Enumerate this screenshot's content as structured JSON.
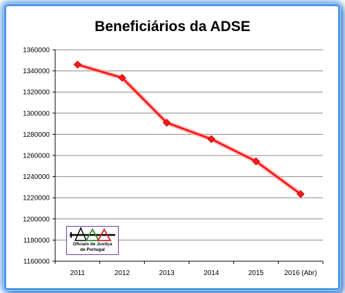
{
  "chart_data": {
    "type": "line",
    "title": "Beneficiários da ADSE",
    "categories": [
      "2011",
      "2012",
      "2013",
      "2014",
      "2015",
      "2016 (Abr)"
    ],
    "series": [
      {
        "values": [
          1346000,
          1333500,
          1291000,
          1275500,
          1254500,
          1223500
        ],
        "color": "#ff1a1a"
      }
    ],
    "ylim": [
      1160000,
      1360000
    ],
    "yticks": [
      1160000,
      1180000,
      1200000,
      1220000,
      1240000,
      1260000,
      1280000,
      1300000,
      1320000,
      1340000,
      1360000
    ],
    "grid": true,
    "marker": "diamond"
  },
  "logo": {
    "line1": "Oficiais de Justiça",
    "line2": "de Portugal"
  },
  "colors": {
    "frame": "#4a97e6",
    "line": "#ff1a1a",
    "grid": "#888888"
  }
}
